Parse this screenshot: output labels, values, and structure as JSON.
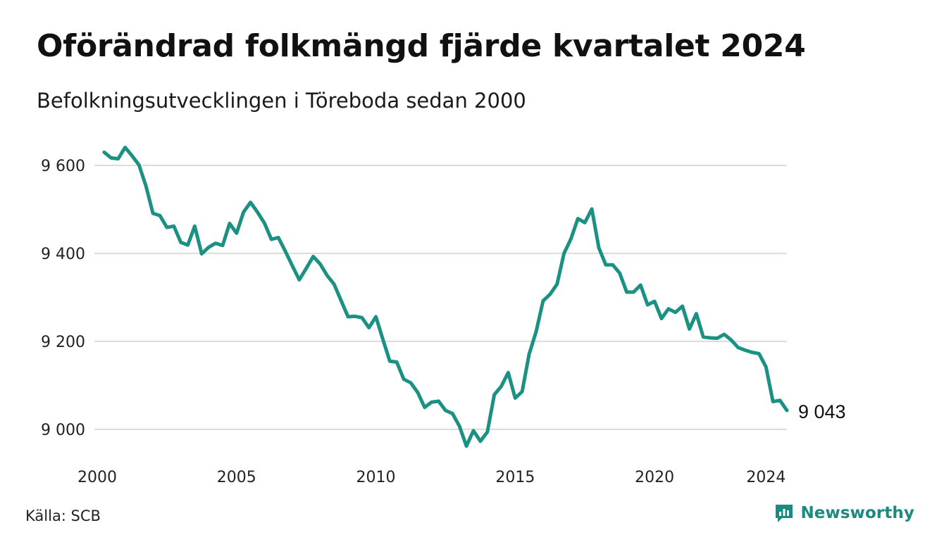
{
  "header": {
    "title": "Oförändrad folkmängd fjärde kvartalet 2024",
    "subtitle": "Befolkningsutvecklingen i Töreboda sedan 2000"
  },
  "footer": {
    "source": "Källa: SCB",
    "brand": "Newsworthy",
    "brand_icon": "newsworthy-logo-icon"
  },
  "colors": {
    "line": "#1a9182",
    "grid": "#dcdcdc",
    "brand": "#1b8a80"
  },
  "chart_data": {
    "type": "line",
    "title": "Oförändrad folkmängd fjärde kvartalet 2024",
    "subtitle": "Befolkningsutvecklingen i Töreboda sedan 2000",
    "xlabel": "",
    "ylabel": "",
    "x_ticks": [
      2000,
      2005,
      2010,
      2015,
      2020,
      2024
    ],
    "x_tick_labels": [
      "2000",
      "2005",
      "2010",
      "2015",
      "2020",
      "2024"
    ],
    "y_ticks": [
      9000,
      9200,
      9400,
      9600
    ],
    "y_tick_labels": [
      "9 000",
      "9 200",
      "9 400",
      "9 600"
    ],
    "xlim": [
      2000,
      2024.75
    ],
    "ylim": [
      8940,
      9660
    ],
    "grid": "horizontal",
    "legend": "none",
    "end_label": "9 043",
    "x": [
      2000.25,
      2000.5,
      2000.75,
      2001.0,
      2001.25,
      2001.5,
      2001.75,
      2002.0,
      2002.25,
      2002.5,
      2002.75,
      2003.0,
      2003.25,
      2003.5,
      2003.75,
      2004.0,
      2004.25,
      2004.5,
      2004.75,
      2005.0,
      2005.25,
      2005.5,
      2005.75,
      2006.0,
      2006.25,
      2006.5,
      2006.75,
      2007.0,
      2007.25,
      2007.5,
      2007.75,
      2008.0,
      2008.25,
      2008.5,
      2008.75,
      2009.0,
      2009.25,
      2009.5,
      2009.75,
      2010.0,
      2010.25,
      2010.5,
      2010.75,
      2011.0,
      2011.25,
      2011.5,
      2011.75,
      2012.0,
      2012.25,
      2012.5,
      2012.75,
      2013.0,
      2013.25,
      2013.5,
      2013.75,
      2014.0,
      2014.25,
      2014.5,
      2014.75,
      2015.0,
      2015.25,
      2015.5,
      2015.75,
      2016.0,
      2016.25,
      2016.5,
      2016.75,
      2017.0,
      2017.25,
      2017.5,
      2017.75,
      2018.0,
      2018.25,
      2018.5,
      2018.75,
      2019.0,
      2019.25,
      2019.5,
      2019.75,
      2020.0,
      2020.25,
      2020.5,
      2020.75,
      2021.0,
      2021.25,
      2021.5,
      2021.75,
      2022.0,
      2022.25,
      2022.5,
      2022.75,
      2023.0,
      2023.25,
      2023.5,
      2023.75,
      2024.0,
      2024.25,
      2024.5,
      2024.75
    ],
    "series": [
      {
        "values": [
          9630,
          9617,
          9615,
          9641,
          9622,
          9601,
          9553,
          9491,
          9486,
          9459,
          9462,
          9425,
          9419,
          9462,
          9399,
          9414,
          9423,
          9418,
          9468,
          9446,
          9494,
          9516,
          9494,
          9469,
          9432,
          9436,
          9405,
          9372,
          9340,
          9366,
          9393,
          9376,
          9350,
          9330,
          9293,
          9256,
          9257,
          9254,
          9231,
          9256,
          9205,
          9155,
          9153,
          9114,
          9106,
          9084,
          9050,
          9062,
          9064,
          9043,
          9036,
          9007,
          8962,
          8997,
          8973,
          8994,
          9079,
          9098,
          9129,
          9071,
          9086,
          9171,
          9222,
          9292,
          9307,
          9330,
          9400,
          9433,
          9479,
          9470,
          9501,
          9413,
          9374,
          9374,
          9355,
          9312,
          9312,
          9328,
          9283,
          9291,
          9252,
          9274,
          9266,
          9280,
          9228,
          9263,
          9210,
          9208,
          9207,
          9216,
          9203,
          9186,
          9180,
          9175,
          9172,
          9142,
          9063,
          9066,
          9043
        ]
      }
    ]
  }
}
